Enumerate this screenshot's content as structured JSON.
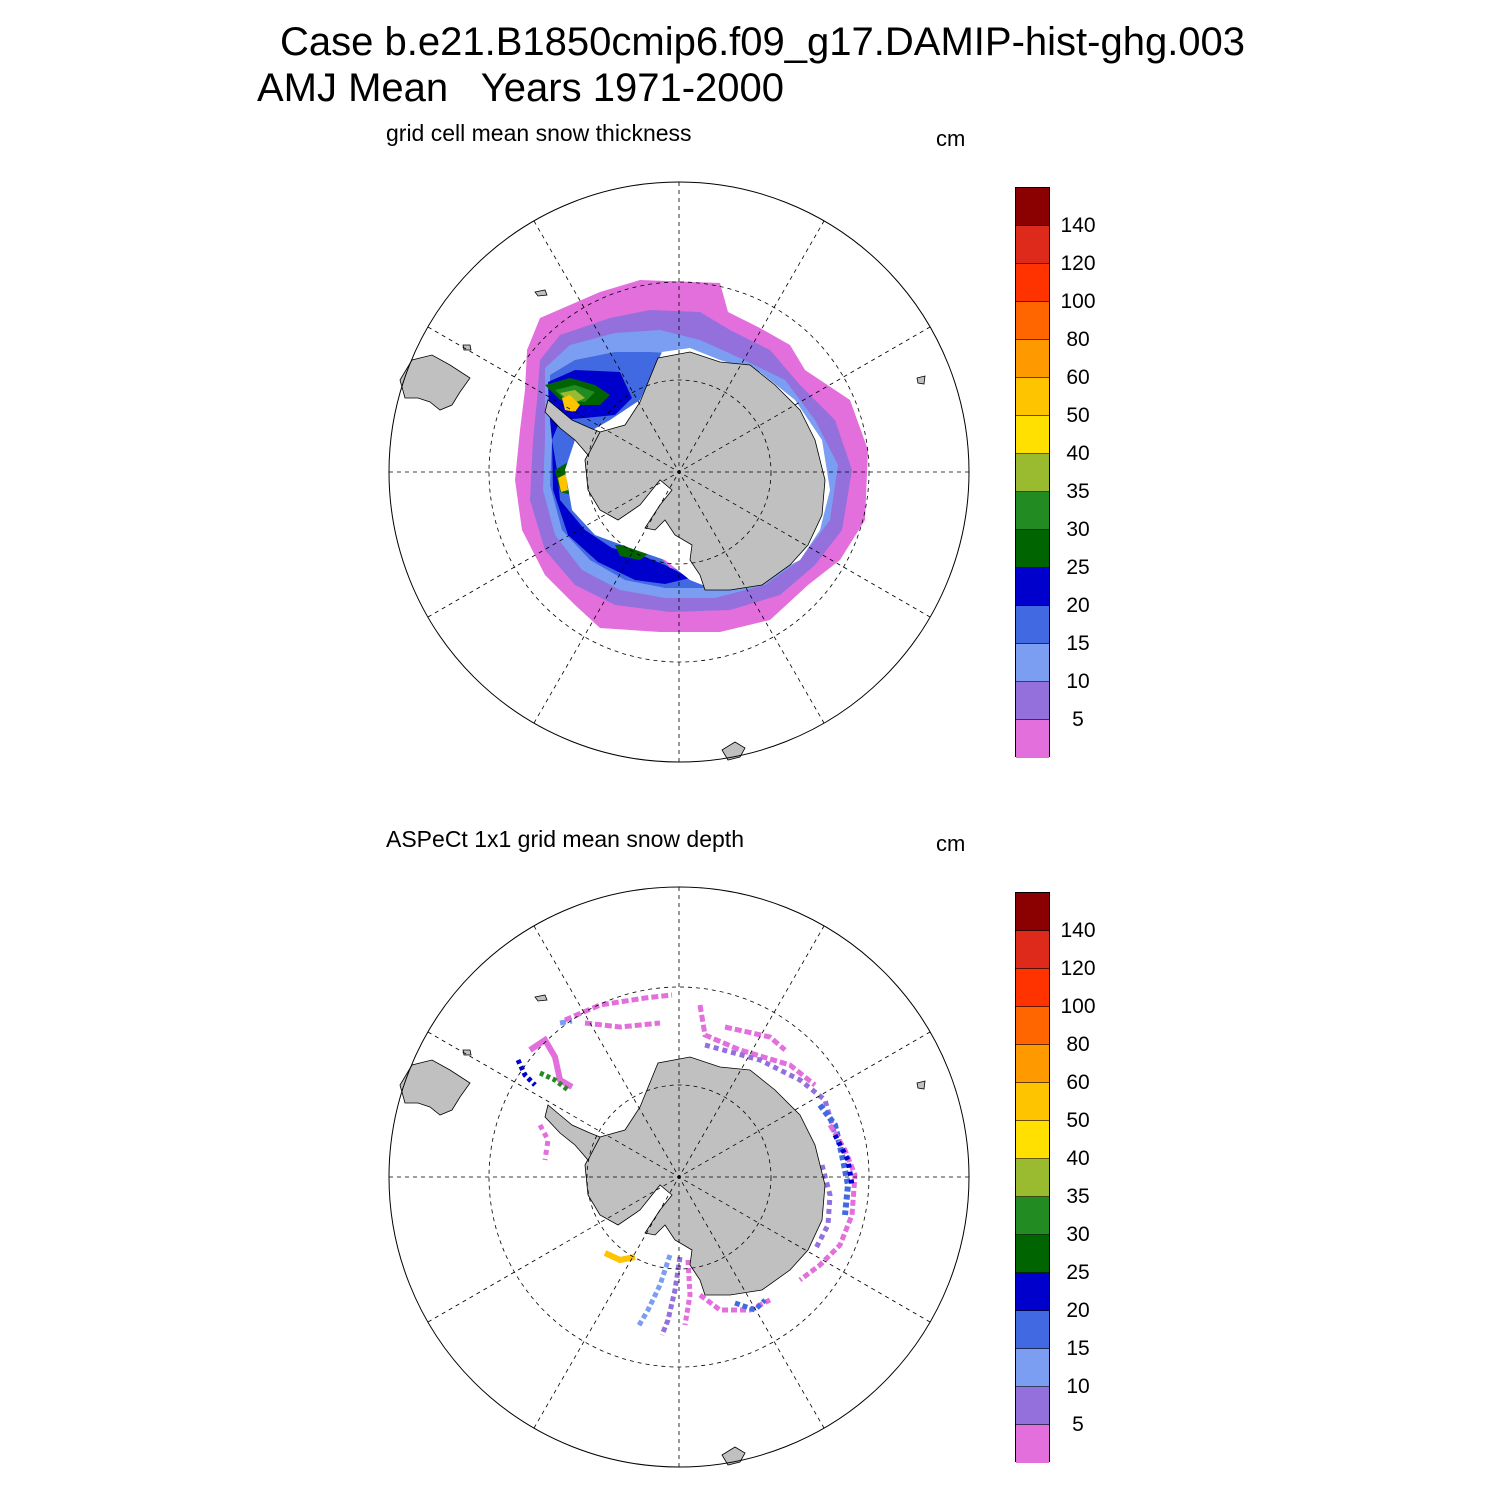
{
  "figure": {
    "title_line1": "Case b.e21.B1850cmip6.f09_g17.DAMIP-hist-ghg.003",
    "title_line2": "AMJ Mean   Years 1971-2000"
  },
  "panels": [
    {
      "title": "grid cell mean snow thickness",
      "units": "cm",
      "colorbar": {
        "levels": [
          "5",
          "10",
          "15",
          "20",
          "25",
          "30",
          "35",
          "40",
          "50",
          "60",
          "80",
          "100",
          "120",
          "140"
        ],
        "colors": [
          "#e36fdd",
          "#9370db",
          "#7b9ef2",
          "#4169e1",
          "#0000cd",
          "#006400",
          "#228b22",
          "#9aba2f",
          "#ffe000",
          "#ffc400",
          "#ff9900",
          "#ff6600",
          "#ff3300",
          "#dd2a1a",
          "#8b0000"
        ]
      }
    },
    {
      "title": "ASPeCt 1x1 grid mean snow depth",
      "units": "cm",
      "colorbar": {
        "levels": [
          "5",
          "10",
          "15",
          "20",
          "25",
          "30",
          "35",
          "40",
          "50",
          "60",
          "80",
          "100",
          "120",
          "140"
        ],
        "colors": [
          "#e36fdd",
          "#9370db",
          "#7b9ef2",
          "#4169e1",
          "#0000cd",
          "#006400",
          "#228b22",
          "#9aba2f",
          "#ffe000",
          "#ffc400",
          "#ff9900",
          "#ff6600",
          "#ff3300",
          "#dd2a1a",
          "#8b0000"
        ]
      }
    }
  ],
  "map": {
    "projection": "south-polar-stereographic",
    "land_color": "#c0c0c0"
  }
}
